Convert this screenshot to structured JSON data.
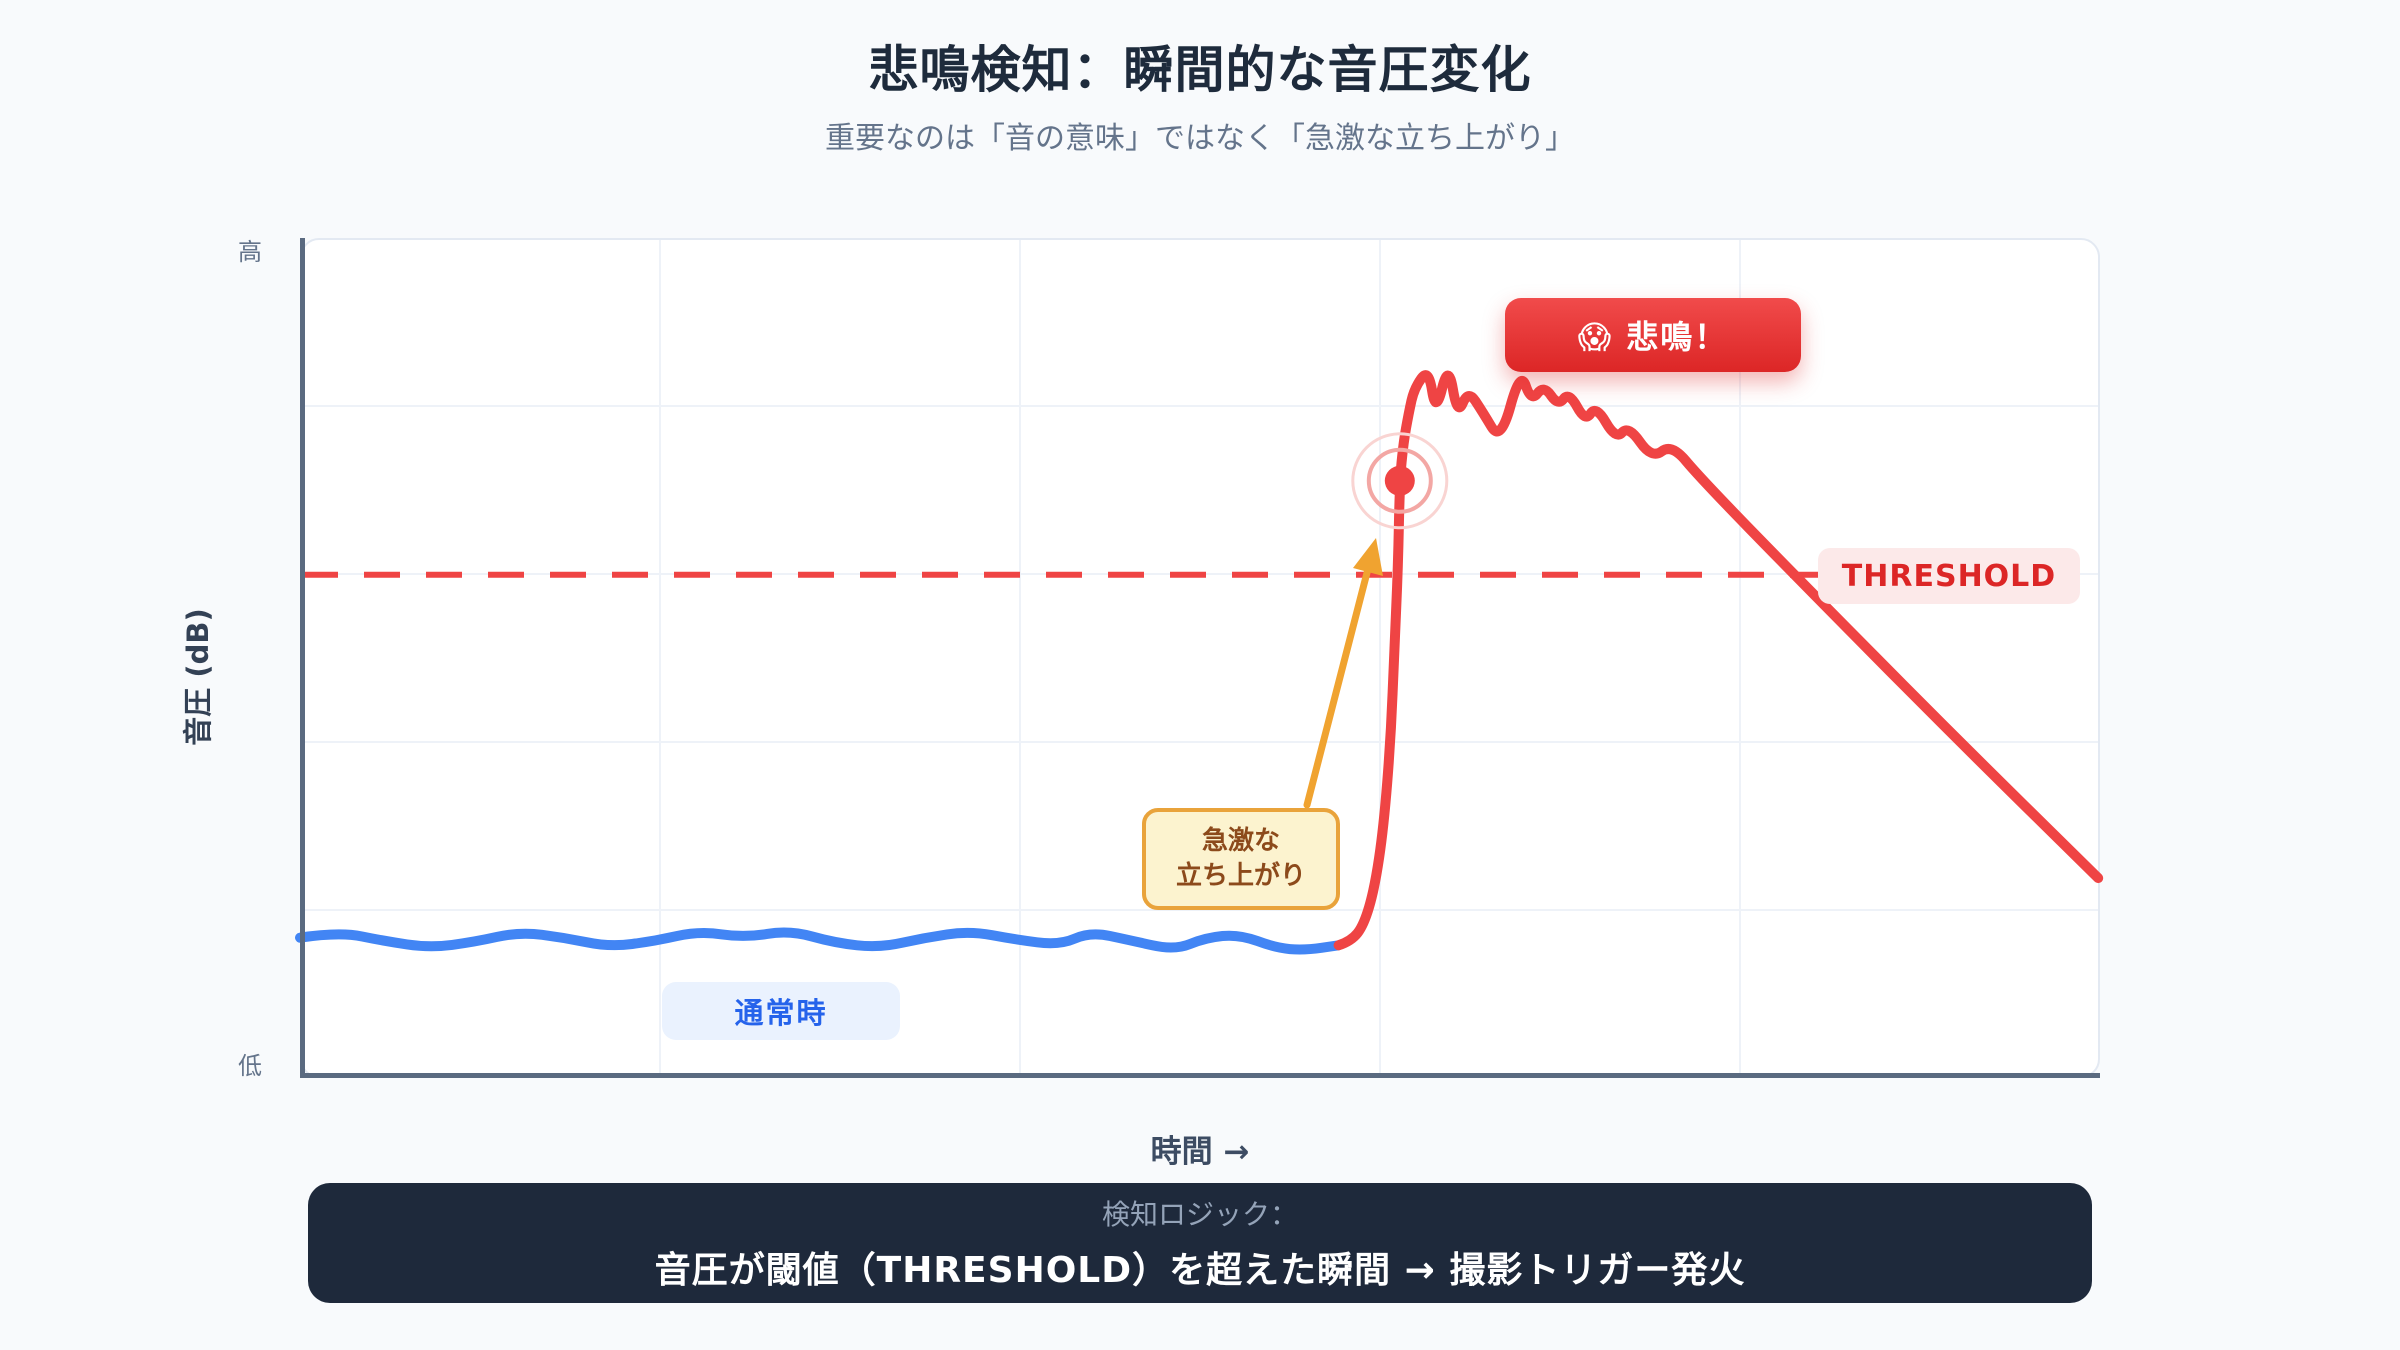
{
  "header": {
    "title": "悲鳴検知：瞬間的な音圧変化",
    "subtitle": "重要なのは「音の意味」ではなく「急激な立ち上がり」"
  },
  "axes": {
    "y_title": "音圧 (dB)",
    "y_high": "高",
    "y_low": "低",
    "x_title": "時間 →"
  },
  "annotations": {
    "scream": "😱 悲鳴！",
    "threshold": "THRESHOLD",
    "spike": {
      "line1": "急激な",
      "line2": "立ち上がり"
    },
    "normal": "通常時"
  },
  "footer": {
    "label": "検知ロジック：",
    "text": "音圧が閾値（THRESHOLD）を超えた瞬間 → 撮影トリガー発火"
  },
  "colors": {
    "background": "#F8FAFC",
    "card": "#FFFFFF",
    "card_border": "#E3E9F2",
    "axis": "#5A6A80",
    "grid": "#EEF2F8",
    "normal_line": "#4285F4",
    "scream_line": "#EF4444",
    "threshold_line": "#EF4444",
    "scream_badge_bg": "#DC2626",
    "threshold_label_bg": "#FCE9E9",
    "threshold_label_text": "#DC2626",
    "spike_box_bg": "#FCF3CF",
    "spike_box_border": "#E9A33B",
    "spike_box_text": "#8C4A1B",
    "normal_badge_bg": "#EAF2FE",
    "normal_badge_text": "#2563EB",
    "arrow": "#F0A330",
    "footer_bg": "#1E293B",
    "footer_label": "#94A3B8",
    "title": "#1E2B3C",
    "subtitle": "#64748B"
  },
  "chart_data": {
    "type": "line",
    "title": "悲鳴検知：瞬間的な音圧変化",
    "xlabel": "時間 →",
    "ylabel": "音圧 (dB)",
    "x_axis": {
      "ticks": []
    },
    "y_axis": {
      "low_label": "低",
      "high_label": "高",
      "ticks": []
    },
    "grid": {
      "vertical_fractions": [
        0.2,
        0.4,
        0.6,
        0.8
      ],
      "horizontal_fractions": [
        0.2,
        0.4,
        0.6,
        0.8
      ]
    },
    "threshold": {
      "label": "THRESHOLD",
      "y_fraction": 0.599,
      "color": "#EF4444",
      "style": "dashed"
    },
    "trigger_point": {
      "x_fraction": 0.611,
      "y_fraction": 0.711,
      "color": "#EF4444"
    },
    "series": [
      {
        "name": "通常時",
        "color": "#4285F4",
        "points": [
          [
            0.0,
            0.167
          ],
          [
            0.022,
            0.174
          ],
          [
            0.047,
            0.163
          ],
          [
            0.072,
            0.155
          ],
          [
            0.097,
            0.162
          ],
          [
            0.122,
            0.174
          ],
          [
            0.147,
            0.167
          ],
          [
            0.172,
            0.156
          ],
          [
            0.197,
            0.163
          ],
          [
            0.222,
            0.175
          ],
          [
            0.247,
            0.167
          ],
          [
            0.272,
            0.176
          ],
          [
            0.297,
            0.161
          ],
          [
            0.322,
            0.155
          ],
          [
            0.347,
            0.167
          ],
          [
            0.372,
            0.175
          ],
          [
            0.397,
            0.165
          ],
          [
            0.422,
            0.158
          ],
          [
            0.439,
            0.174
          ],
          [
            0.461,
            0.164
          ],
          [
            0.486,
            0.152
          ],
          [
            0.503,
            0.167
          ],
          [
            0.522,
            0.171
          ],
          [
            0.542,
            0.155
          ],
          [
            0.558,
            0.152
          ],
          [
            0.577,
            0.158
          ]
        ]
      },
      {
        "name": "悲鳴（急激な立ち上がり）",
        "color": "#EF4444",
        "points": [
          [
            0.577,
            0.158
          ],
          [
            0.584,
            0.163
          ],
          [
            0.591,
            0.182
          ],
          [
            0.597,
            0.226
          ],
          [
            0.602,
            0.298
          ],
          [
            0.606,
            0.405
          ],
          [
            0.608,
            0.512
          ],
          [
            0.61,
            0.607
          ],
          [
            0.611,
            0.711
          ],
          [
            0.613,
            0.756
          ],
          [
            0.616,
            0.792
          ],
          [
            0.619,
            0.821
          ],
          [
            0.627,
            0.845
          ],
          [
            0.631,
            0.79
          ],
          [
            0.638,
            0.852
          ],
          [
            0.643,
            0.788
          ],
          [
            0.649,
            0.819
          ],
          [
            0.657,
            0.793
          ],
          [
            0.667,
            0.757
          ],
          [
            0.678,
            0.843
          ],
          [
            0.684,
            0.805
          ],
          [
            0.691,
            0.825
          ],
          [
            0.699,
            0.8
          ],
          [
            0.705,
            0.817
          ],
          [
            0.714,
            0.781
          ],
          [
            0.72,
            0.801
          ],
          [
            0.731,
            0.76
          ],
          [
            0.738,
            0.777
          ],
          [
            0.751,
            0.737
          ],
          [
            0.762,
            0.755
          ],
          [
            0.778,
            0.714
          ],
          [
            0.833,
            0.593
          ],
          [
            0.917,
            0.411
          ],
          [
            0.999,
            0.238
          ]
        ]
      }
    ]
  }
}
